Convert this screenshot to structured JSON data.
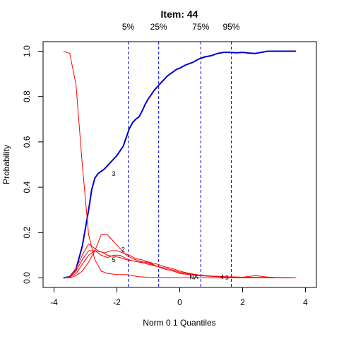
{
  "chart_data": {
    "type": "line",
    "title": "Item:  44",
    "xlabel": "Norm 0 1 Quantiles",
    "ylabel": "Probability",
    "xlim": [
      -4,
      4
    ],
    "ylim": [
      0,
      1
    ],
    "xticks": [
      -4,
      -2,
      0,
      2,
      4
    ],
    "yticks": [
      0.0,
      0.2,
      0.4,
      0.6,
      0.8,
      1.0
    ],
    "xtick_labels": [
      "-4",
      "-2",
      "0",
      "2",
      "4"
    ],
    "ytick_labels": [
      "0.0",
      "0.2",
      "0.4",
      "0.6",
      "0.8",
      "1.0"
    ],
    "grid": false,
    "quantiles": [
      {
        "label": "5%",
        "x": -1.64
      },
      {
        "label": "25%",
        "x": -0.67
      },
      {
        "label": "75%",
        "x": 0.67
      },
      {
        "label": "95%",
        "x": 1.64
      }
    ],
    "colors": {
      "key": "#0000cc",
      "distractor": "#ff0000",
      "quantile": "#0000cc"
    },
    "series": [
      {
        "role": "key",
        "x": [
          -3.7,
          -3.5,
          -3.3,
          -3.1,
          -2.9,
          -2.8,
          -2.7,
          -2.6,
          -2.5,
          -2.4,
          -2.3,
          -2.2,
          -2.1,
          -2.0,
          -1.9,
          -1.8,
          -1.7,
          -1.6,
          -1.5,
          -1.4,
          -1.3,
          -1.2,
          -1.1,
          -1.0,
          -0.9,
          -0.8,
          -0.7,
          -0.6,
          -0.5,
          -0.4,
          -0.3,
          -0.2,
          -0.1,
          0.0,
          0.2,
          0.4,
          0.6,
          0.8,
          1.0,
          1.2,
          1.4,
          1.6,
          1.8,
          2.0,
          2.2,
          2.4,
          2.6,
          2.8,
          3.0,
          3.4,
          3.7
        ],
        "y": [
          0.0,
          0.005,
          0.04,
          0.14,
          0.3,
          0.39,
          0.44,
          0.46,
          0.47,
          0.48,
          0.495,
          0.51,
          0.525,
          0.54,
          0.56,
          0.58,
          0.62,
          0.66,
          0.685,
          0.7,
          0.71,
          0.735,
          0.765,
          0.79,
          0.81,
          0.83,
          0.845,
          0.86,
          0.875,
          0.89,
          0.9,
          0.91,
          0.92,
          0.925,
          0.94,
          0.95,
          0.965,
          0.975,
          0.98,
          0.99,
          0.995,
          0.995,
          0.993,
          0.995,
          0.992,
          0.99,
          0.995,
          1.0,
          1.0,
          1.0,
          1.0
        ]
      },
      {
        "role": "distractor",
        "x": [
          -3.7,
          -3.5,
          -3.3,
          -3.1,
          -2.9,
          -2.7,
          -2.5,
          -2.3,
          -2.0,
          -1.7,
          -1.3,
          -1.0,
          -0.5,
          0.0,
          0.5,
          1.0,
          1.5,
          2.0,
          2.5,
          3.0,
          3.7
        ],
        "y": [
          1.0,
          0.99,
          0.85,
          0.5,
          0.19,
          0.08,
          0.03,
          0.02,
          0.015,
          0.015,
          0.005,
          0.003,
          0.002,
          0.001,
          0.001,
          0.001,
          0.0,
          0.0,
          0.0,
          0.0,
          0.0
        ]
      },
      {
        "role": "distractor",
        "x": [
          -3.7,
          -3.5,
          -3.3,
          -3.1,
          -2.9,
          -2.7,
          -2.5,
          -2.3,
          -2.1,
          -1.9,
          -1.7,
          -1.5,
          -1.3,
          -1.0,
          -0.7,
          -0.5,
          -0.2,
          0.0,
          0.3,
          0.6,
          1.0,
          1.5,
          2.0,
          2.4,
          2.7,
          3.0,
          3.7
        ],
        "y": [
          0.0,
          0.0,
          0.01,
          0.03,
          0.07,
          0.12,
          0.19,
          0.19,
          0.16,
          0.13,
          0.1,
          0.085,
          0.075,
          0.065,
          0.05,
          0.04,
          0.03,
          0.02,
          0.015,
          0.01,
          0.008,
          0.005,
          0.003,
          0.01,
          0.005,
          0.002,
          0.0
        ]
      },
      {
        "role": "distractor",
        "x": [
          -3.7,
          -3.5,
          -3.3,
          -3.1,
          -2.9,
          -2.8,
          -2.6,
          -2.4,
          -2.2,
          -2.0,
          -1.8,
          -1.6,
          -1.4,
          -1.2,
          -1.0,
          -0.7,
          -0.5,
          -0.2,
          0.0,
          0.3,
          0.6,
          1.0,
          1.5,
          2.0,
          3.0,
          3.7
        ],
        "y": [
          0.0,
          0.005,
          0.04,
          0.1,
          0.15,
          0.14,
          0.12,
          0.11,
          0.12,
          0.12,
          0.11,
          0.1,
          0.085,
          0.08,
          0.07,
          0.05,
          0.04,
          0.03,
          0.02,
          0.015,
          0.01,
          0.007,
          0.004,
          0.002,
          0.001,
          0.0
        ]
      },
      {
        "role": "distractor",
        "x": [
          -3.7,
          -3.5,
          -3.3,
          -3.1,
          -2.9,
          -2.7,
          -2.5,
          -2.3,
          -2.1,
          -1.9,
          -1.7,
          -1.5,
          -1.3,
          -1.0,
          -0.7,
          -0.5,
          -0.2,
          0.0,
          0.3,
          0.6,
          1.0,
          1.5,
          2.0,
          3.0,
          3.7
        ],
        "y": [
          0.0,
          0.005,
          0.03,
          0.08,
          0.12,
          0.12,
          0.1,
          0.09,
          0.1,
          0.1,
          0.085,
          0.075,
          0.07,
          0.07,
          0.06,
          0.05,
          0.04,
          0.03,
          0.02,
          0.013,
          0.008,
          0.005,
          0.003,
          0.001,
          0.0
        ]
      },
      {
        "role": "distractor",
        "x": [
          -3.7,
          -3.5,
          -3.3,
          -3.1,
          -2.9,
          -2.7,
          -2.5,
          -2.3,
          -2.1,
          -1.9,
          -1.7,
          -1.5,
          -1.3,
          -1.0,
          -0.7,
          -0.5,
          -0.2,
          0.0,
          0.3,
          0.6,
          1.0,
          1.5,
          2.0,
          3.0,
          3.7
        ],
        "y": [
          0.0,
          0.003,
          0.02,
          0.06,
          0.1,
          0.12,
          0.115,
          0.1,
          0.095,
          0.09,
          0.08,
          0.075,
          0.07,
          0.06,
          0.05,
          0.045,
          0.035,
          0.025,
          0.018,
          0.012,
          0.007,
          0.004,
          0.002,
          0.001,
          0.0
        ]
      }
    ],
    "curve_labels": [
      {
        "text": "3",
        "x": -2.1,
        "y": 0.46
      },
      {
        "text": "2",
        "x": -1.8,
        "y": 0.125
      },
      {
        "text": "5",
        "x": -2.1,
        "y": 0.08
      },
      {
        "text": "NA",
        "x": 0.45,
        "y": 0.003
      },
      {
        "text": "4",
        "x": 1.35,
        "y": 0.003
      },
      {
        "text": "1",
        "x": 1.5,
        "y": 0.003
      }
    ]
  }
}
